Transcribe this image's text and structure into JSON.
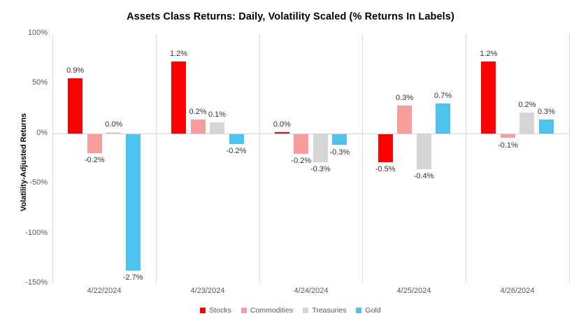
{
  "chart_data": {
    "type": "bar",
    "title": "Assets Class Returns: Daily, Volatility Scaled (% Returns In Labels)",
    "ylabel": "Volatility-Adjusted Returns",
    "xlabel": "",
    "ylim": [
      -150,
      100
    ],
    "yticks": [
      100,
      50,
      0,
      -50,
      -100,
      -150
    ],
    "ytick_labels": [
      "100%",
      "50%",
      "0%",
      "-50%",
      "-100%",
      "-150%"
    ],
    "categories": [
      "4/22/2024",
      "4/23/2024",
      "4/24/2024",
      "4/25/2024",
      "4/26/2024"
    ],
    "series": [
      {
        "name": "Stocks",
        "color": "#FF0000",
        "labels": [
          "0.9%",
          "1.2%",
          "0.0%",
          "-0.5%",
          "1.2%"
        ],
        "bar_values": [
          55,
          72,
          1.5,
          -28,
          72
        ]
      },
      {
        "name": "Commodities",
        "color": "#F89C9C",
        "labels": [
          "-0.2%",
          "0.2%",
          "-0.2%",
          "0.3%",
          "-0.1%"
        ],
        "bar_values": [
          -19,
          14,
          -20,
          28,
          -4
        ]
      },
      {
        "name": "Treasuries",
        "color": "#D5D5D5",
        "labels": [
          "0.0%",
          "0.1%",
          "-0.3%",
          "-0.4%",
          "0.2%"
        ],
        "bar_values": [
          1.5,
          11,
          -28,
          -35,
          21
        ]
      },
      {
        "name": "Gold",
        "color": "#4DC3F0",
        "labels": [
          "-2.7%",
          "-0.2%",
          "-0.3%",
          "0.7%",
          "0.3%"
        ],
        "bar_values": [
          -137,
          -10,
          -11,
          30,
          14
        ]
      }
    ],
    "legend_position": "bottom",
    "grid": "vertical category separators and zero line only",
    "background": "#FFFFFF",
    "gridline_color": "#D9D9D9"
  }
}
